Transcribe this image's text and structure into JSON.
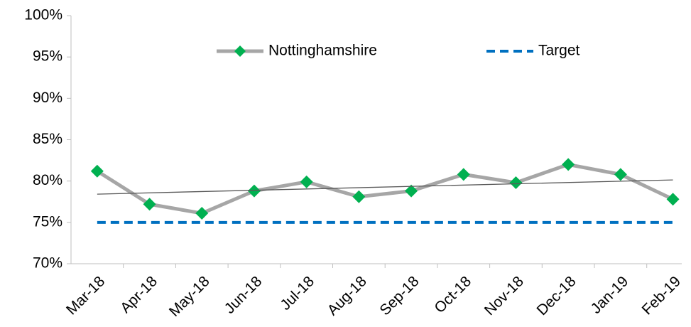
{
  "chart_data": {
    "type": "line",
    "categories": [
      "Mar-18",
      "Apr-18",
      "May-18",
      "Jun-18",
      "Jul-18",
      "Aug-18",
      "Sep-18",
      "Oct-18",
      "Nov-18",
      "Dec-18",
      "Jan-19",
      "Feb-19"
    ],
    "series": [
      {
        "name": "Nottinghamshire",
        "color": "#a6a6a6",
        "marker_color": "#00b050",
        "values": [
          81.2,
          77.2,
          76.1,
          78.8,
          79.9,
          78.1,
          78.8,
          80.8,
          79.8,
          82.0,
          80.8,
          77.8
        ]
      },
      {
        "name": "Target",
        "color": "#0070c0",
        "dashed": true,
        "values": [
          75,
          75,
          75,
          75,
          75,
          75,
          75,
          75,
          75,
          75,
          75,
          75
        ]
      }
    ],
    "trendline": true,
    "ylim": [
      70,
      100
    ],
    "yticks": [
      {
        "value": 70,
        "label": "70%"
      },
      {
        "value": 75,
        "label": "75%"
      },
      {
        "value": 80,
        "label": "80%"
      },
      {
        "value": 85,
        "label": "85%"
      },
      {
        "value": 90,
        "label": "90%"
      },
      {
        "value": 95,
        "label": "95%"
      },
      {
        "value": 100,
        "label": "100%"
      }
    ],
    "grid": false,
    "legend": "top"
  }
}
